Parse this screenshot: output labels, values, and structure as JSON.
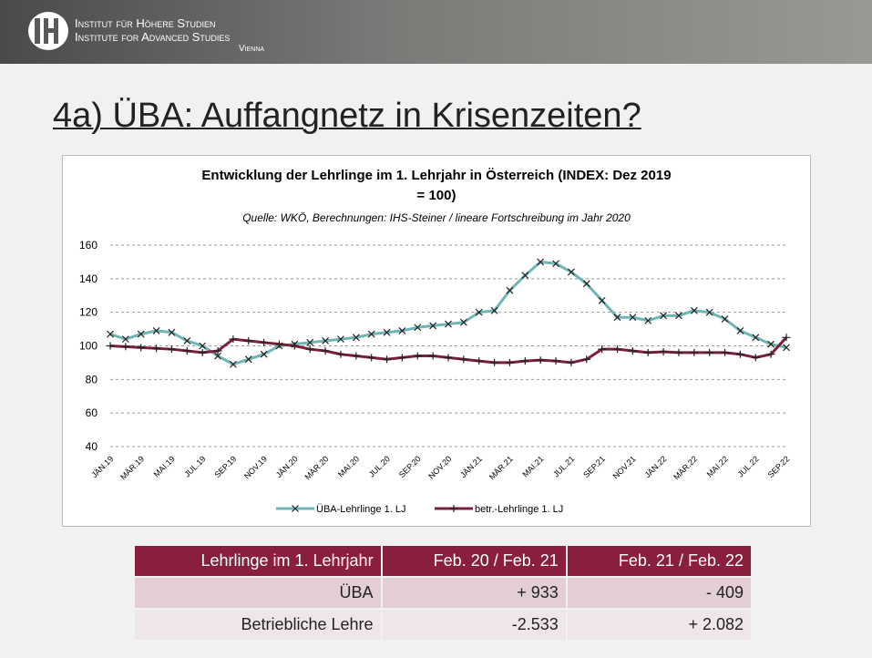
{
  "header": {
    "line1": "Institut für Höhere Studien",
    "line2": "Institute for Advanced Studies",
    "line3": "Vienna"
  },
  "slide_title": "4a) ÜBA: Auffangnetz in Krisenzeiten?",
  "chart_data": {
    "type": "line",
    "title": "Entwicklung der Lehrlinge im 1. Lehrjahr in Österreich (INDEX: Dez 2019 = 100)",
    "subtitle": "Quelle: WKÖ, Berechnungen: IHS-Steiner / lineare Fortschreibung im Jahr 2020",
    "categories": [
      "JÄN.19",
      null,
      "MÄR.19",
      null,
      "MAI.19",
      null,
      "JUL.19",
      null,
      "SEP.19",
      null,
      "NOV.19",
      null,
      "JÄN.20",
      null,
      "MÄR.20",
      null,
      "MAI.20",
      null,
      "JUL.20",
      null,
      "SEP.20",
      null,
      "NOV.20",
      null,
      "JÄN.21",
      null,
      "MÄR.21",
      null,
      "MAI.21",
      null,
      "JUL.21",
      null,
      "SEP.21",
      null,
      "NOV.21",
      null,
      "JÄN.22",
      null,
      "MÄR.22",
      null,
      "MAI.22",
      null,
      "JUL.22",
      null,
      "SEP.22"
    ],
    "series": [
      {
        "name": "ÜBA-Lehrlinge 1. LJ",
        "color": "#6fb5b5",
        "marker_color": "#222222",
        "marker": "x",
        "values": [
          107,
          104,
          107,
          109,
          108,
          103,
          100,
          94,
          89,
          92,
          95,
          100,
          101,
          102,
          103,
          104,
          105,
          107,
          108,
          109,
          111,
          112,
          113,
          114,
          120,
          121,
          133,
          142,
          150,
          149,
          144,
          137,
          127,
          117,
          117,
          115,
          118,
          118,
          121,
          120,
          116,
          109,
          105,
          101,
          99
        ]
      },
      {
        "name": "betr.-Lehrlinge 1. LJ",
        "color": "#7b1f3c",
        "marker_color": "#222222",
        "marker": "+",
        "values": [
          100,
          99.5,
          99,
          98.5,
          98,
          97,
          96,
          97,
          104,
          103,
          102,
          101,
          100,
          98,
          97,
          95,
          94,
          93,
          92,
          93,
          94,
          94,
          93,
          92,
          91,
          90,
          90,
          91,
          91.5,
          91,
          90,
          92,
          98,
          98,
          97,
          96,
          96.5,
          96,
          96,
          96,
          96,
          95,
          93,
          95,
          105
        ]
      }
    ],
    "ylim": [
      40,
      160
    ],
    "yticks": [
      40,
      60,
      80,
      100,
      120,
      140,
      160
    ],
    "grid": true,
    "legend": "bottom"
  },
  "table": {
    "header": [
      "Lehrlinge im 1. Lehrjahr",
      "Feb. 20 / Feb. 21",
      "Feb. 21 / Feb. 22"
    ],
    "rows": [
      [
        "ÜBA",
        "+ 933",
        "- 409"
      ],
      [
        "Betriebliche Lehre",
        "-2.533",
        "+ 2.082"
      ]
    ]
  }
}
